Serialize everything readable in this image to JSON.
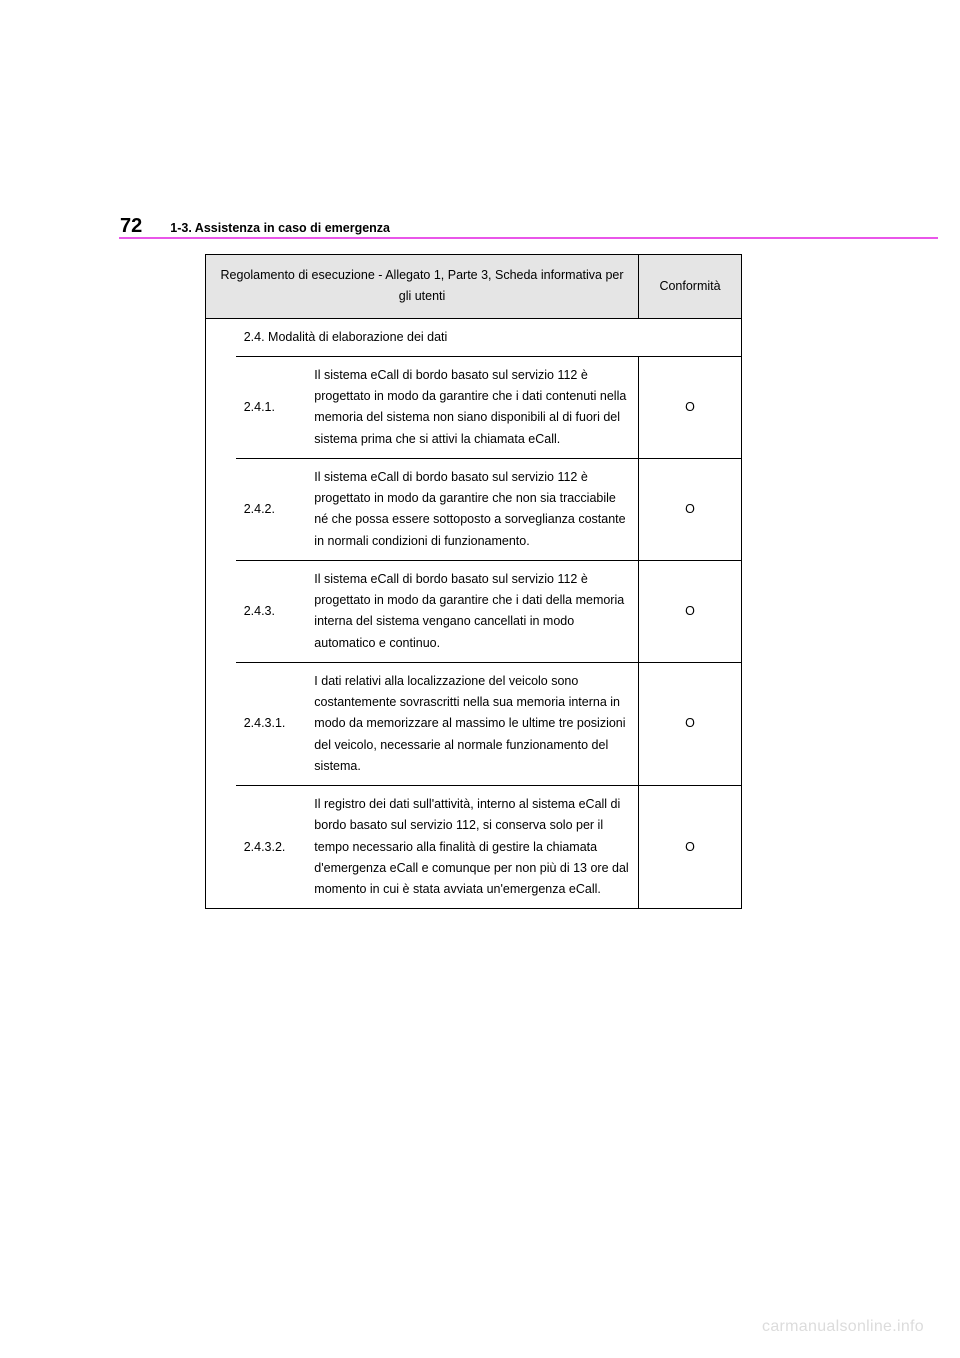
{
  "header": {
    "page_number": "72",
    "section_title": "1-3. Assistenza in caso di emergenza"
  },
  "table": {
    "header_col1": "Regolamento di esecuzione - Allegato 1, Parte 3, Scheda informativa per gli utenti",
    "header_col2": "Conformità",
    "section_header": "2.4. Modalità di elaborazione dei dati",
    "rows": [
      {
        "num": "2.4.1.",
        "desc": "Il sistema eCall di bordo basato sul servizio 112 è progettato in modo da garantire che i dati contenuti nella memoria del sistema non siano disponibili al di fuori del sistema prima che si attivi la chiamata eCall.",
        "conf": "O"
      },
      {
        "num": "2.4.2.",
        "desc": "Il sistema eCall di bordo basato sul servizio 112 è progettato in modo da garantire che non sia tracciabile né che possa essere sottoposto a sorveglianza costante in normali condizioni di funzionamento.",
        "conf": "O"
      },
      {
        "num": "2.4.3.",
        "desc": "Il sistema eCall di bordo basato sul servizio 112 è progettato in modo da garantire che i dati della memoria interna del sistema vengano cancellati in modo automatico e continuo.",
        "conf": "O"
      },
      {
        "num": "2.4.3.1.",
        "desc": "I dati relativi alla localizzazione del veicolo sono costantemente sovrascritti nella sua memoria interna in modo da memorizzare al massimo le ultime tre posizioni del veicolo, necessarie al normale funzionamento del sistema.",
        "conf": "O"
      },
      {
        "num": "2.4.3.2.",
        "desc": "Il registro dei dati sull'attività, interno al sistema eCall di bordo basato sul servizio 112, si conserva solo per il tempo necessario alla finalità di gestire la chiamata d'emergenza eCall e comunque per non più di 13 ore dal momento in cui è stata avviata un'emergenza eCall.",
        "conf": "O"
      }
    ]
  },
  "watermark": "carmanualsonline.info",
  "colors": {
    "divider": "#e956e9",
    "header_bg": "#e5e5e5",
    "watermark": "#dcdcdc"
  }
}
